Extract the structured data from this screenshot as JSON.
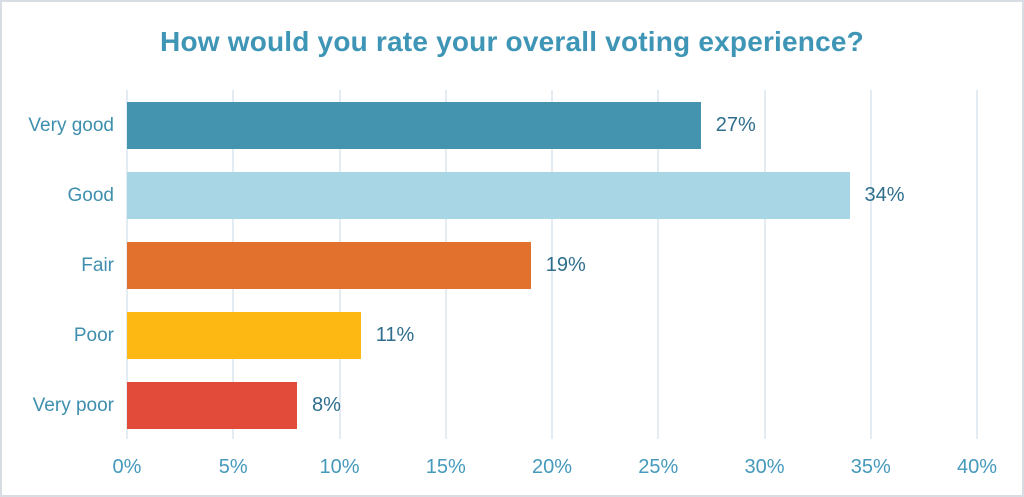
{
  "chart_data": {
    "type": "bar",
    "orientation": "horizontal",
    "title": "How would you rate your overall voting experience?",
    "categories": [
      "Very good",
      "Good",
      "Fair",
      "Poor",
      "Very poor"
    ],
    "values": [
      27,
      34,
      19,
      11,
      8
    ],
    "value_labels": [
      "27%",
      "34%",
      "19%",
      "11%",
      "8%"
    ],
    "xlabel": "",
    "ylabel": "",
    "xlim": [
      0,
      40
    ],
    "x_tick_values": [
      0,
      5,
      10,
      15,
      20,
      25,
      30,
      35,
      40
    ],
    "x_tick_labels": [
      "0%",
      "5%",
      "10%",
      "15%",
      "20%",
      "25%",
      "30%",
      "35%",
      "40%"
    ],
    "grid": "vertical",
    "legend": "none",
    "bar_colors": [
      "#4493af",
      "#a8d6e4",
      "#e2712e",
      "#fdb813",
      "#e24b3a"
    ],
    "colors": {
      "title": "#3e95b5",
      "category_label": "#3e8fae",
      "value_label": "#2e6e8c",
      "tick_label": "#4599bb",
      "gridline": "#e3ecf3",
      "background": "#ffffff",
      "border": "#d7dde2"
    }
  }
}
